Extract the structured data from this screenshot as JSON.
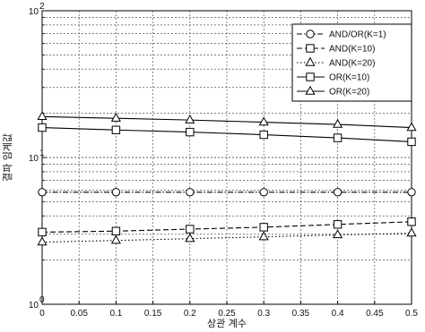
{
  "chart_data": {
    "type": "line",
    "xlabel": "상관 계수",
    "ylabel": "결파 임계값",
    "x": [
      0,
      0.1,
      0.2,
      0.3,
      0.4,
      0.5
    ],
    "xticks": [
      "0",
      "0.05",
      "0.1",
      "0.15",
      "0.2",
      "0.25",
      "0.3",
      "0.35",
      "0.4",
      "0.45",
      "0.5"
    ],
    "xlim": [
      0,
      0.5
    ],
    "ylim": [
      1,
      100
    ],
    "yscale": "log",
    "grid": true,
    "legend_position": "top-right",
    "series": [
      {
        "name": "AND/OR(K=1)",
        "marker": "circle",
        "linestyle": "dashdot",
        "values": [
          5.8,
          5.8,
          5.8,
          5.8,
          5.8,
          5.8
        ]
      },
      {
        "name": "AND(K=10)",
        "marker": "square",
        "linestyle": "dashed",
        "values": [
          3.1,
          3.15,
          3.25,
          3.35,
          3.5,
          3.65
        ]
      },
      {
        "name": "AND(K=20)",
        "marker": "triangle",
        "linestyle": "dotted",
        "values": [
          2.65,
          2.72,
          2.8,
          2.88,
          2.97,
          3.05
        ]
      },
      {
        "name": "OR(K=10)",
        "marker": "square",
        "linestyle": "solid",
        "values": [
          16.0,
          15.4,
          14.9,
          14.3,
          13.6,
          12.8
        ]
      },
      {
        "name": "OR(K=20)",
        "marker": "triangle",
        "linestyle": "solid",
        "values": [
          19.0,
          18.5,
          18.0,
          17.4,
          16.8,
          16.0
        ]
      }
    ]
  }
}
